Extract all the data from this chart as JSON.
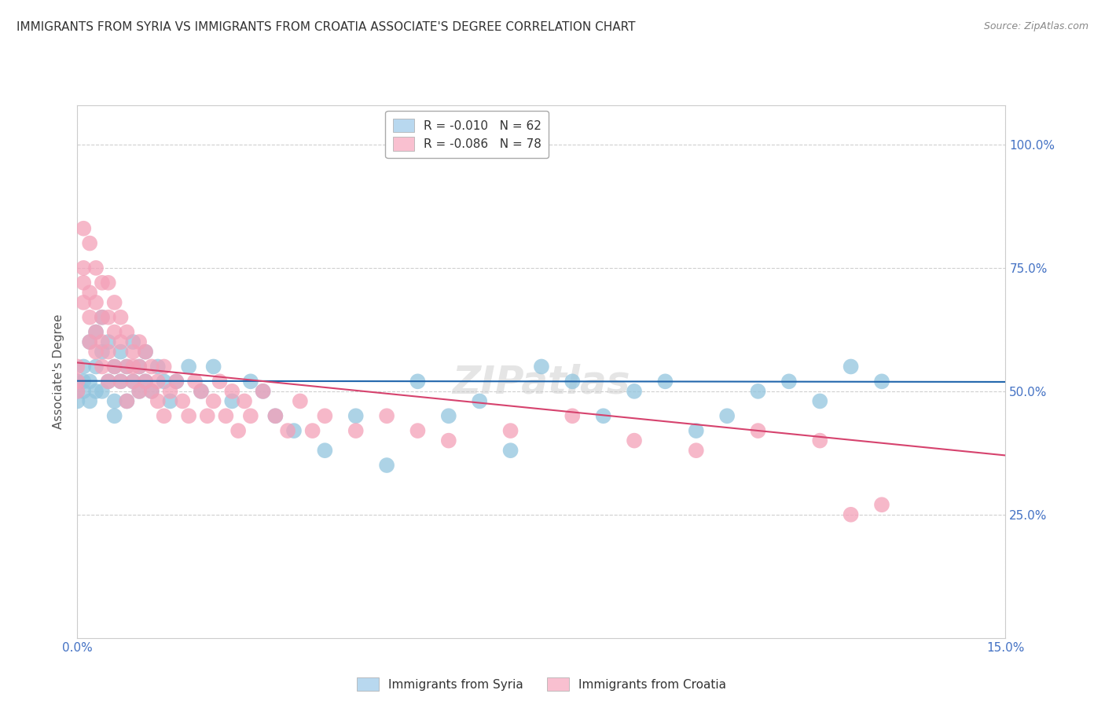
{
  "title": "IMMIGRANTS FROM SYRIA VS IMMIGRANTS FROM CROATIA ASSOCIATE'S DEGREE CORRELATION CHART",
  "source": "Source: ZipAtlas.com",
  "ylabel": "Associate's Degree",
  "xlim": [
    0.0,
    0.15
  ],
  "ylim": [
    0.0,
    1.08
  ],
  "xticks": [
    0.0,
    0.15
  ],
  "xtick_labels": [
    "0.0%",
    "15.0%"
  ],
  "yticks": [
    0.25,
    0.5,
    0.75,
    1.0
  ],
  "ytick_labels": [
    "25.0%",
    "50.0%",
    "75.0%",
    "100.0%"
  ],
  "syria": {
    "name": "Immigrants from Syria",
    "color": "#92c5de",
    "R": -0.01,
    "N": 62,
    "x": [
      0.0,
      0.0,
      0.0,
      0.001,
      0.001,
      0.001,
      0.002,
      0.002,
      0.002,
      0.003,
      0.003,
      0.003,
      0.004,
      0.004,
      0.004,
      0.005,
      0.005,
      0.006,
      0.006,
      0.006,
      0.007,
      0.007,
      0.008,
      0.008,
      0.009,
      0.009,
      0.01,
      0.01,
      0.011,
      0.011,
      0.012,
      0.013,
      0.014,
      0.015,
      0.016,
      0.018,
      0.02,
      0.022,
      0.025,
      0.028,
      0.03,
      0.032,
      0.035,
      0.04,
      0.045,
      0.05,
      0.055,
      0.06,
      0.065,
      0.07,
      0.075,
      0.08,
      0.085,
      0.09,
      0.095,
      0.1,
      0.105,
      0.11,
      0.115,
      0.12,
      0.125,
      0.13
    ],
    "y": [
      0.5,
      0.52,
      0.48,
      0.52,
      0.5,
      0.55,
      0.52,
      0.48,
      0.6,
      0.5,
      0.55,
      0.62,
      0.58,
      0.5,
      0.65,
      0.52,
      0.6,
      0.55,
      0.48,
      0.45,
      0.58,
      0.52,
      0.55,
      0.48,
      0.52,
      0.6,
      0.55,
      0.5,
      0.52,
      0.58,
      0.5,
      0.55,
      0.52,
      0.48,
      0.52,
      0.55,
      0.5,
      0.55,
      0.48,
      0.52,
      0.5,
      0.45,
      0.42,
      0.38,
      0.45,
      0.35,
      0.52,
      0.45,
      0.48,
      0.38,
      0.55,
      0.52,
      0.45,
      0.5,
      0.52,
      0.42,
      0.45,
      0.5,
      0.52,
      0.48,
      0.55,
      0.52
    ],
    "trend_x": [
      0.0,
      0.15
    ],
    "trend_y": [
      0.521,
      0.519
    ],
    "trend_color": "#2166ac"
  },
  "croatia": {
    "name": "Immigrants from Croatia",
    "color": "#f4a0b8",
    "R": -0.086,
    "N": 78,
    "x": [
      0.0,
      0.0,
      0.0,
      0.001,
      0.001,
      0.001,
      0.001,
      0.002,
      0.002,
      0.002,
      0.002,
      0.003,
      0.003,
      0.003,
      0.003,
      0.004,
      0.004,
      0.004,
      0.004,
      0.005,
      0.005,
      0.005,
      0.005,
      0.006,
      0.006,
      0.006,
      0.007,
      0.007,
      0.007,
      0.008,
      0.008,
      0.008,
      0.009,
      0.009,
      0.009,
      0.01,
      0.01,
      0.01,
      0.011,
      0.011,
      0.012,
      0.012,
      0.013,
      0.013,
      0.014,
      0.014,
      0.015,
      0.016,
      0.017,
      0.018,
      0.019,
      0.02,
      0.021,
      0.022,
      0.023,
      0.024,
      0.025,
      0.026,
      0.027,
      0.028,
      0.03,
      0.032,
      0.034,
      0.036,
      0.038,
      0.04,
      0.045,
      0.05,
      0.055,
      0.06,
      0.07,
      0.08,
      0.09,
      0.1,
      0.11,
      0.12,
      0.125,
      0.13
    ],
    "y": [
      0.52,
      0.5,
      0.55,
      0.83,
      0.75,
      0.68,
      0.72,
      0.8,
      0.7,
      0.65,
      0.6,
      0.75,
      0.68,
      0.62,
      0.58,
      0.72,
      0.65,
      0.6,
      0.55,
      0.65,
      0.72,
      0.58,
      0.52,
      0.62,
      0.68,
      0.55,
      0.6,
      0.52,
      0.65,
      0.55,
      0.62,
      0.48,
      0.58,
      0.55,
      0.52,
      0.6,
      0.55,
      0.5,
      0.52,
      0.58,
      0.5,
      0.55,
      0.48,
      0.52,
      0.55,
      0.45,
      0.5,
      0.52,
      0.48,
      0.45,
      0.52,
      0.5,
      0.45,
      0.48,
      0.52,
      0.45,
      0.5,
      0.42,
      0.48,
      0.45,
      0.5,
      0.45,
      0.42,
      0.48,
      0.42,
      0.45,
      0.42,
      0.45,
      0.42,
      0.4,
      0.42,
      0.45,
      0.4,
      0.38,
      0.42,
      0.4,
      0.25,
      0.27
    ],
    "trend_x": [
      0.0,
      0.15
    ],
    "trend_y": [
      0.558,
      0.37
    ],
    "trend_color": "#d6436e"
  },
  "legend_upper": {
    "syria_label": "R = -0.010   N = 62",
    "croatia_label": "R = -0.086   N = 78",
    "syria_color": "#b8d8ef",
    "croatia_color": "#f9c0d0"
  },
  "legend_bottom": {
    "syria_label": "Immigrants from Syria",
    "croatia_label": "Immigrants from Croatia",
    "syria_color": "#b8d8ef",
    "croatia_color": "#f9c0d0"
  },
  "bg_color": "#ffffff",
  "grid_color": "#d0d0d0",
  "title_fontsize": 11,
  "tick_color": "#4472c4",
  "tick_fontsize": 11
}
